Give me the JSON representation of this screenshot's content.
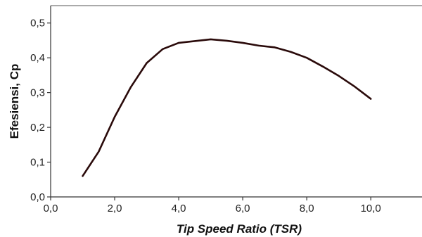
{
  "chart_data": {
    "type": "line",
    "title": "",
    "xlabel": "Tip Speed Ratio (TSR)",
    "ylabel": "Efesiensi, Cp",
    "xlim": [
      0,
      11.6
    ],
    "ylim": [
      0,
      0.55
    ],
    "x_ticks": [
      "0,0",
      "2,0",
      "4,0",
      "6,0",
      "8,0",
      "10,0"
    ],
    "y_ticks": [
      "0,0",
      "0,1",
      "0,2",
      "0,3",
      "0,4",
      "0,5"
    ],
    "grid": false,
    "legend": "none",
    "line_color": "#2a0a0a",
    "series": [
      {
        "x": [
          1.0,
          1.5,
          2.0,
          2.5,
          3.0,
          3.5,
          4.0,
          4.5,
          5.0,
          5.5,
          6.0,
          6.5,
          7.0,
          7.5,
          8.0,
          8.5,
          9.0,
          9.5,
          10.0
        ],
        "y": [
          0.06,
          0.13,
          0.23,
          0.315,
          0.385,
          0.425,
          0.443,
          0.448,
          0.453,
          0.449,
          0.443,
          0.435,
          0.43,
          0.417,
          0.4,
          0.375,
          0.348,
          0.317,
          0.282
        ]
      }
    ]
  }
}
